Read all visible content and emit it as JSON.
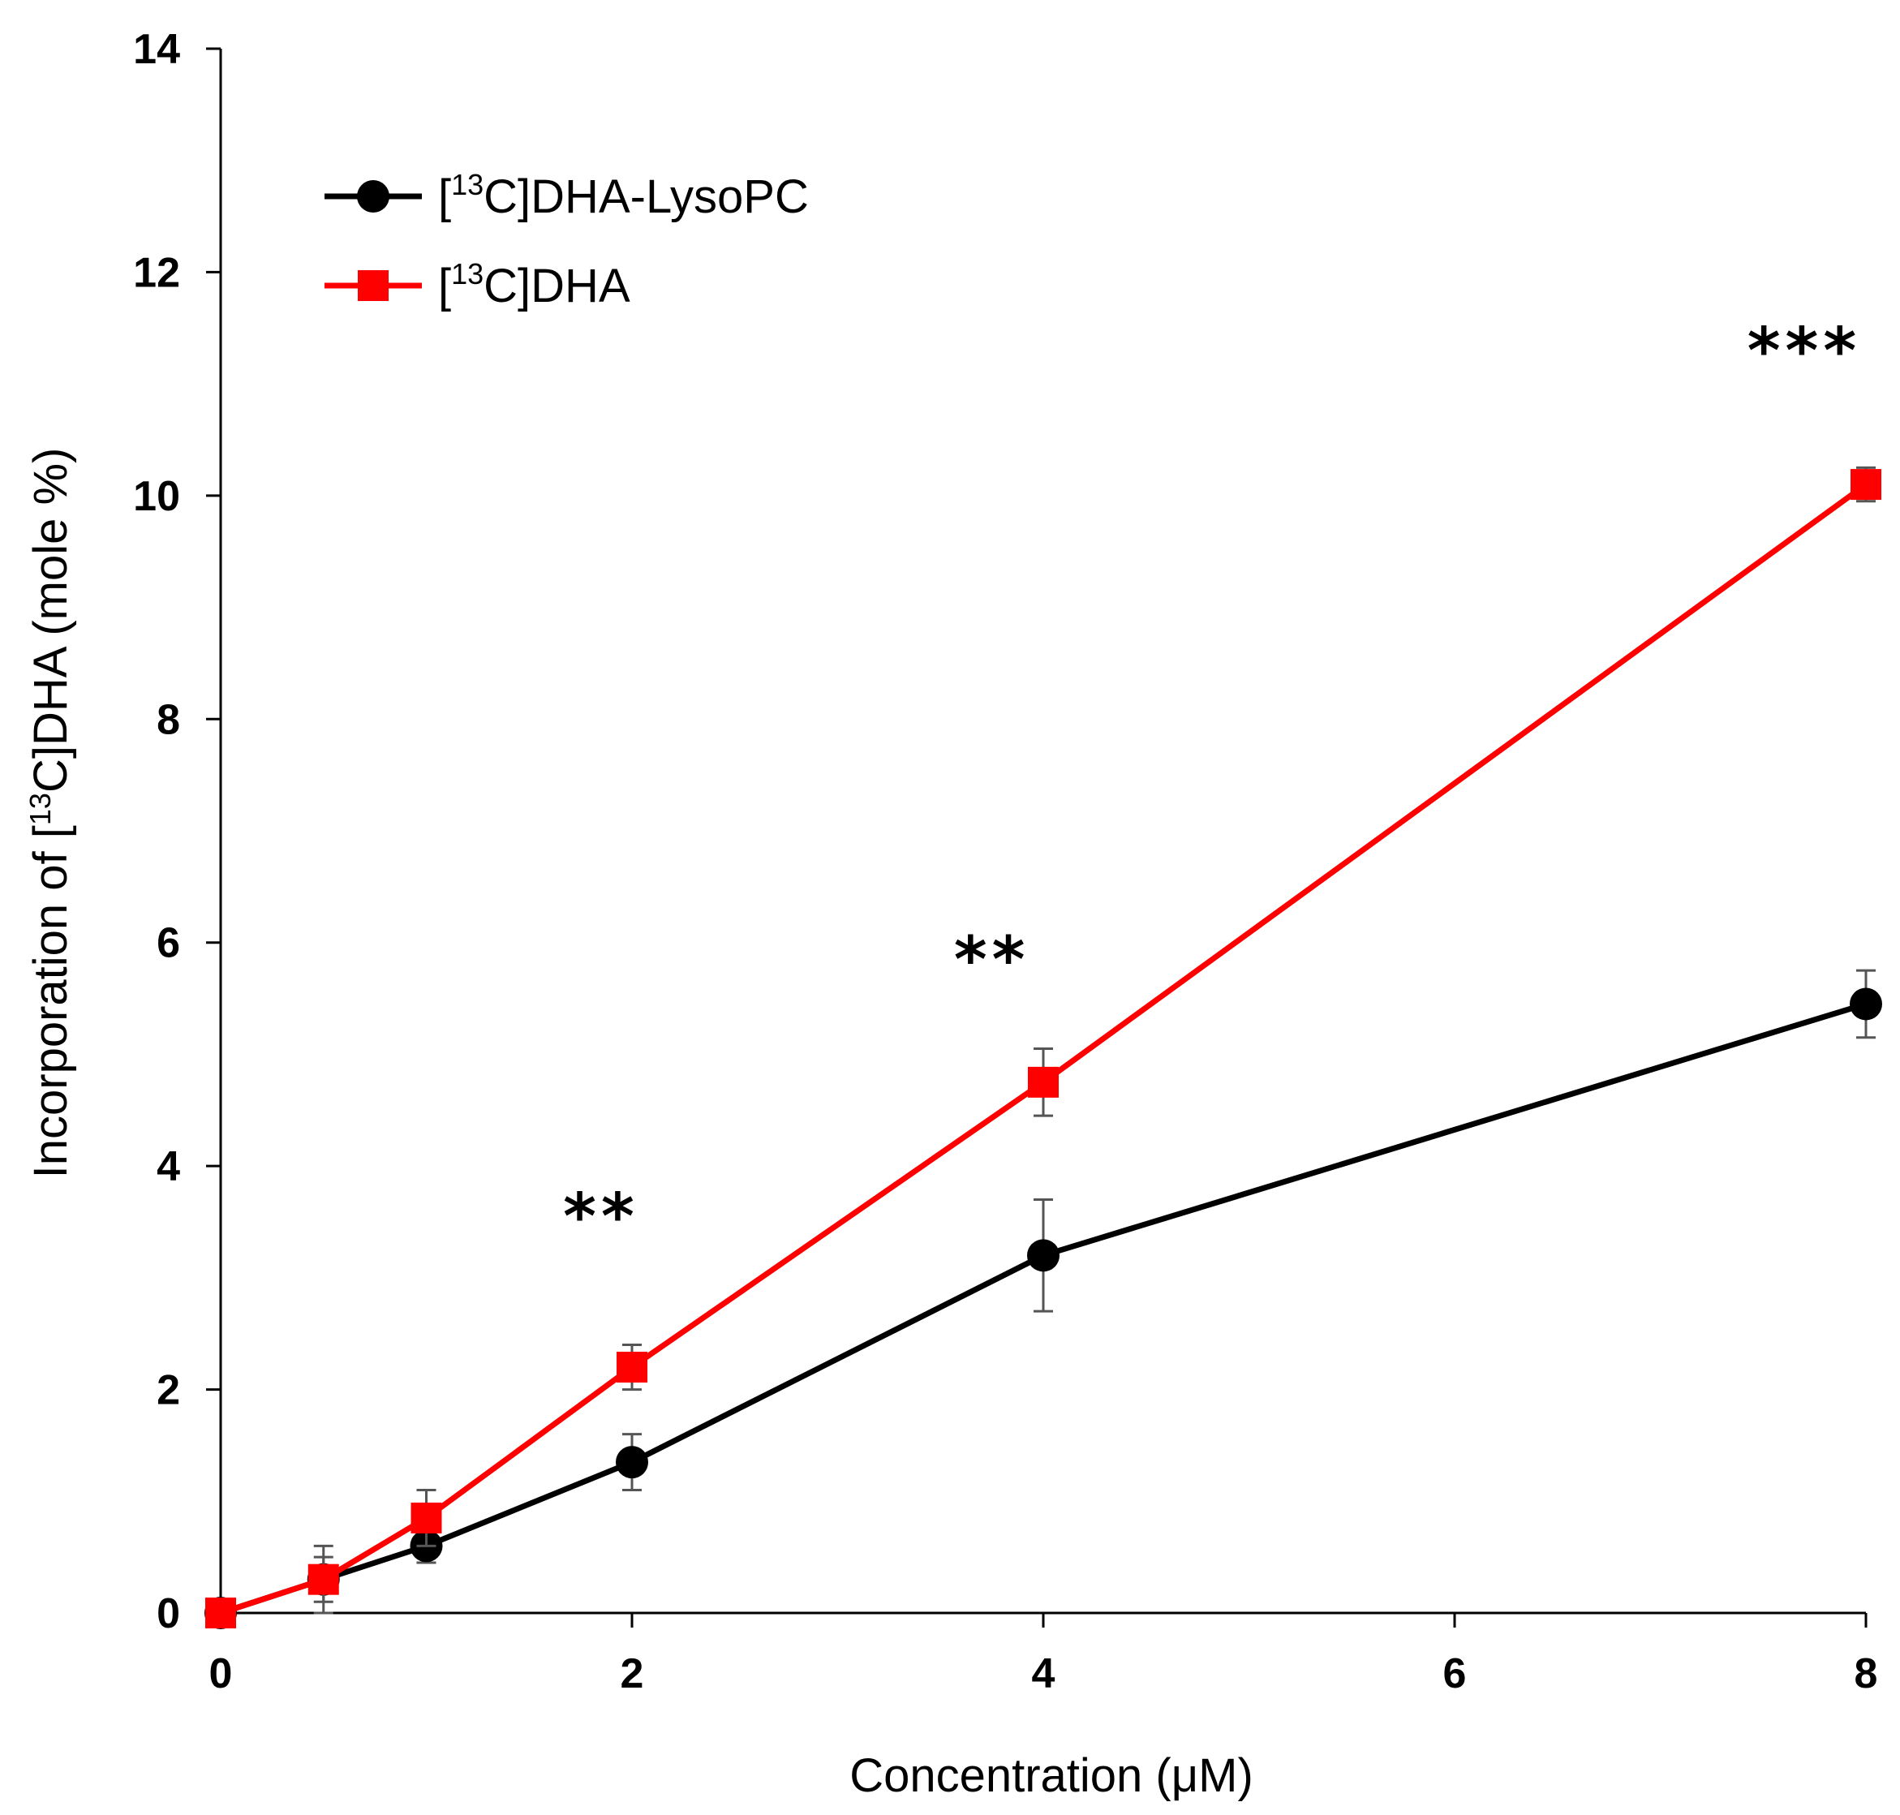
{
  "chart_data": {
    "type": "line",
    "title": "",
    "xlabel": "Concentration (μM)",
    "ylabel": {
      "pre": "Incorporation of [",
      "sup": "13",
      "post": "C]DHA (mole %)"
    },
    "xlim": [
      0,
      8
    ],
    "ylim": [
      0,
      14
    ],
    "x_ticks": [
      0,
      2,
      4,
      6,
      8
    ],
    "y_ticks": [
      0,
      2,
      4,
      6,
      8,
      10,
      12,
      14
    ],
    "grid": false,
    "legend_position": "top-left",
    "series": [
      {
        "name": "[13C]DHA-LysoPC",
        "legend": {
          "pre": "[",
          "sup": "13",
          "post": "C]DHA-LysoPC"
        },
        "color": "#000000",
        "marker": "circle",
        "x": [
          0,
          0.5,
          1,
          2,
          4,
          8
        ],
        "y": [
          0.0,
          0.3,
          0.6,
          1.35,
          3.2,
          5.45
        ],
        "error": [
          0.1,
          0.3,
          0.15,
          0.25,
          0.5,
          0.3
        ]
      },
      {
        "name": "[13C]DHA",
        "legend": {
          "pre": "[",
          "sup": "13",
          "post": "C]DHA"
        },
        "color": "#ff0000",
        "marker": "square",
        "x": [
          0,
          0.5,
          1,
          2,
          4,
          8
        ],
        "y": [
          0.0,
          0.3,
          0.85,
          2.2,
          4.75,
          10.1
        ],
        "error": [
          0.05,
          0.2,
          0.25,
          0.2,
          0.3,
          0.15
        ]
      }
    ],
    "annotations": [
      {
        "text": "**",
        "x": 1.85,
        "y": 3.35
      },
      {
        "text": "**",
        "x": 3.75,
        "y": 5.65
      },
      {
        "text": "***",
        "x": 7.7,
        "y": 11.1
      }
    ]
  }
}
